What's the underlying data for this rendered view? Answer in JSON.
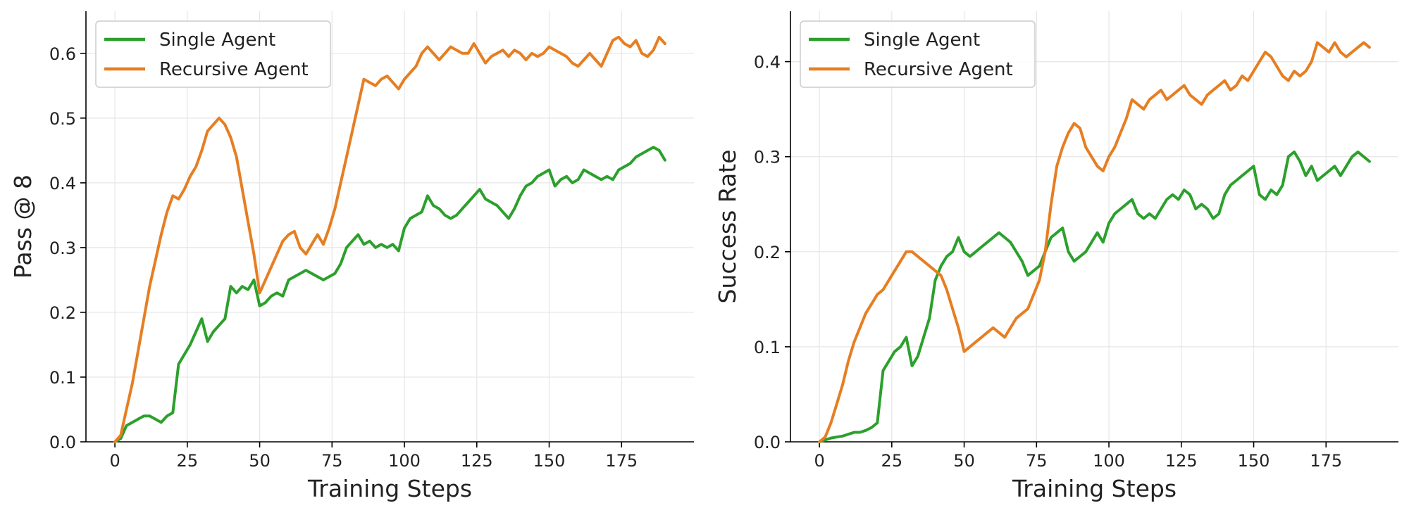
{
  "colors": {
    "single": "#2ca02c",
    "recursive": "#e67e22",
    "grid": "#e6e6e6",
    "axis": "#000000"
  },
  "chart_data": [
    {
      "type": "line",
      "xlabel": "Training Steps",
      "ylabel": "Pass @ 8",
      "xlim": [
        -10,
        200
      ],
      "ylim": [
        0,
        0.665
      ],
      "xticks": [
        0,
        25,
        50,
        75,
        100,
        125,
        150,
        175
      ],
      "xtick_labels": [
        "0",
        "25",
        "50",
        "75",
        "100",
        "125",
        "150",
        "175"
      ],
      "yticks": [
        0,
        0.1,
        0.2,
        0.3,
        0.4,
        0.5,
        0.6
      ],
      "ytick_labels": [
        "0.0",
        "0.1",
        "0.2",
        "0.3",
        "0.4",
        "0.5",
        "0.6"
      ],
      "grid": true,
      "legend": "top-left",
      "series": [
        {
          "name": "Single Agent",
          "color": "single",
          "x": [
            0,
            2,
            4,
            6,
            8,
            10,
            12,
            14,
            16,
            18,
            20,
            22,
            24,
            26,
            28,
            30,
            32,
            34,
            36,
            38,
            40,
            42,
            44,
            46,
            48,
            50,
            52,
            54,
            56,
            58,
            60,
            62,
            64,
            66,
            68,
            70,
            72,
            74,
            76,
            78,
            80,
            82,
            84,
            86,
            88,
            90,
            92,
            94,
            96,
            98,
            100,
            102,
            104,
            106,
            108,
            110,
            112,
            114,
            116,
            118,
            120,
            122,
            124,
            126,
            128,
            130,
            132,
            134,
            136,
            138,
            140,
            142,
            144,
            146,
            148,
            150,
            152,
            154,
            156,
            158,
            160,
            162,
            164,
            166,
            168,
            170,
            172,
            174,
            176,
            178,
            180,
            182,
            184,
            186,
            188,
            190
          ],
          "values": [
            0,
            0.005,
            0.025,
            0.03,
            0.035,
            0.04,
            0.04,
            0.035,
            0.03,
            0.04,
            0.045,
            0.12,
            0.135,
            0.15,
            0.17,
            0.19,
            0.155,
            0.17,
            0.18,
            0.19,
            0.24,
            0.23,
            0.24,
            0.235,
            0.25,
            0.21,
            0.215,
            0.225,
            0.23,
            0.225,
            0.25,
            0.255,
            0.26,
            0.265,
            0.26,
            0.255,
            0.25,
            0.255,
            0.26,
            0.275,
            0.3,
            0.31,
            0.32,
            0.305,
            0.31,
            0.3,
            0.305,
            0.3,
            0.305,
            0.295,
            0.33,
            0.345,
            0.35,
            0.355,
            0.38,
            0.365,
            0.36,
            0.35,
            0.345,
            0.35,
            0.36,
            0.37,
            0.38,
            0.39,
            0.375,
            0.37,
            0.365,
            0.355,
            0.345,
            0.36,
            0.38,
            0.395,
            0.4,
            0.41,
            0.415,
            0.42,
            0.395,
            0.405,
            0.41,
            0.4,
            0.405,
            0.42,
            0.415,
            0.41,
            0.405,
            0.41,
            0.405,
            0.42,
            0.425,
            0.43,
            0.44,
            0.445,
            0.45,
            0.455,
            0.45,
            0.435
          ]
        },
        {
          "name": "Recursive Agent",
          "color": "recursive",
          "x": [
            0,
            2,
            4,
            6,
            8,
            10,
            12,
            14,
            16,
            18,
            20,
            22,
            24,
            26,
            28,
            30,
            32,
            34,
            36,
            38,
            40,
            42,
            44,
            46,
            48,
            50,
            52,
            54,
            56,
            58,
            60,
            62,
            64,
            66,
            68,
            70,
            72,
            74,
            76,
            78,
            80,
            82,
            84,
            86,
            88,
            90,
            92,
            94,
            96,
            98,
            100,
            102,
            104,
            106,
            108,
            110,
            112,
            114,
            116,
            118,
            120,
            122,
            124,
            126,
            128,
            130,
            132,
            134,
            136,
            138,
            140,
            142,
            144,
            146,
            148,
            150,
            152,
            154,
            156,
            158,
            160,
            162,
            164,
            166,
            168,
            170,
            172,
            174,
            176,
            178,
            180,
            182,
            184,
            186,
            188,
            190
          ],
          "values": [
            0,
            0.01,
            0.05,
            0.09,
            0.14,
            0.19,
            0.24,
            0.28,
            0.32,
            0.355,
            0.38,
            0.375,
            0.39,
            0.41,
            0.425,
            0.45,
            0.48,
            0.49,
            0.5,
            0.49,
            0.47,
            0.44,
            0.39,
            0.34,
            0.29,
            0.23,
            0.25,
            0.27,
            0.29,
            0.31,
            0.32,
            0.325,
            0.3,
            0.29,
            0.305,
            0.32,
            0.305,
            0.33,
            0.36,
            0.4,
            0.44,
            0.48,
            0.52,
            0.56,
            0.555,
            0.55,
            0.56,
            0.565,
            0.555,
            0.545,
            0.56,
            0.57,
            0.58,
            0.6,
            0.61,
            0.6,
            0.59,
            0.6,
            0.61,
            0.605,
            0.6,
            0.6,
            0.615,
            0.6,
            0.585,
            0.595,
            0.6,
            0.605,
            0.595,
            0.605,
            0.6,
            0.59,
            0.6,
            0.595,
            0.6,
            0.61,
            0.605,
            0.6,
            0.595,
            0.585,
            0.58,
            0.59,
            0.6,
            0.59,
            0.58,
            0.6,
            0.62,
            0.625,
            0.615,
            0.61,
            0.62,
            0.6,
            0.595,
            0.605,
            0.625,
            0.615
          ]
        }
      ]
    },
    {
      "type": "line",
      "xlabel": "Training Steps",
      "ylabel": "Success Rate",
      "xlim": [
        -10,
        200
      ],
      "ylim": [
        0,
        0.453
      ],
      "xticks": [
        0,
        25,
        50,
        75,
        100,
        125,
        150,
        175
      ],
      "xtick_labels": [
        "0",
        "25",
        "50",
        "75",
        "100",
        "125",
        "150",
        "175"
      ],
      "yticks": [
        0,
        0.1,
        0.2,
        0.3,
        0.4
      ],
      "ytick_labels": [
        "0.0",
        "0.1",
        "0.2",
        "0.3",
        "0.4"
      ],
      "grid": true,
      "legend": "top-left",
      "series": [
        {
          "name": "Single Agent",
          "color": "single",
          "x": [
            0,
            2,
            4,
            6,
            8,
            10,
            12,
            14,
            16,
            18,
            20,
            22,
            24,
            26,
            28,
            30,
            32,
            34,
            36,
            38,
            40,
            42,
            44,
            46,
            48,
            50,
            52,
            54,
            56,
            58,
            60,
            62,
            64,
            66,
            68,
            70,
            72,
            74,
            76,
            78,
            80,
            82,
            84,
            86,
            88,
            90,
            92,
            94,
            96,
            98,
            100,
            102,
            104,
            106,
            108,
            110,
            112,
            114,
            116,
            118,
            120,
            122,
            124,
            126,
            128,
            130,
            132,
            134,
            136,
            138,
            140,
            142,
            144,
            146,
            148,
            150,
            152,
            154,
            156,
            158,
            160,
            162,
            164,
            166,
            168,
            170,
            172,
            174,
            176,
            178,
            180,
            182,
            184,
            186,
            188,
            190
          ],
          "values": [
            0,
            0.002,
            0.004,
            0.005,
            0.006,
            0.008,
            0.01,
            0.01,
            0.012,
            0.015,
            0.02,
            0.075,
            0.085,
            0.095,
            0.1,
            0.11,
            0.08,
            0.09,
            0.11,
            0.13,
            0.17,
            0.185,
            0.195,
            0.2,
            0.215,
            0.2,
            0.195,
            0.2,
            0.205,
            0.21,
            0.215,
            0.22,
            0.215,
            0.21,
            0.2,
            0.19,
            0.175,
            0.18,
            0.185,
            0.2,
            0.215,
            0.22,
            0.225,
            0.2,
            0.19,
            0.195,
            0.2,
            0.21,
            0.22,
            0.21,
            0.23,
            0.24,
            0.245,
            0.25,
            0.255,
            0.24,
            0.235,
            0.24,
            0.235,
            0.245,
            0.255,
            0.26,
            0.255,
            0.265,
            0.26,
            0.245,
            0.25,
            0.245,
            0.235,
            0.24,
            0.26,
            0.27,
            0.275,
            0.28,
            0.285,
            0.29,
            0.26,
            0.255,
            0.265,
            0.26,
            0.27,
            0.3,
            0.305,
            0.295,
            0.28,
            0.29,
            0.275,
            0.28,
            0.285,
            0.29,
            0.28,
            0.29,
            0.3,
            0.305,
            0.3,
            0.295
          ]
        },
        {
          "name": "Recursive Agent",
          "color": "recursive",
          "x": [
            0,
            2,
            4,
            6,
            8,
            10,
            12,
            14,
            16,
            18,
            20,
            22,
            24,
            26,
            28,
            30,
            32,
            34,
            36,
            38,
            40,
            42,
            44,
            46,
            48,
            50,
            52,
            54,
            56,
            58,
            60,
            62,
            64,
            66,
            68,
            70,
            72,
            74,
            76,
            78,
            80,
            82,
            84,
            86,
            88,
            90,
            92,
            94,
            96,
            98,
            100,
            102,
            104,
            106,
            108,
            110,
            112,
            114,
            116,
            118,
            120,
            122,
            124,
            126,
            128,
            130,
            132,
            134,
            136,
            138,
            140,
            142,
            144,
            146,
            148,
            150,
            152,
            154,
            156,
            158,
            160,
            162,
            164,
            166,
            168,
            170,
            172,
            174,
            176,
            178,
            180,
            182,
            184,
            186,
            188,
            190
          ],
          "values": [
            0,
            0.005,
            0.02,
            0.04,
            0.06,
            0.085,
            0.105,
            0.12,
            0.135,
            0.145,
            0.155,
            0.16,
            0.17,
            0.18,
            0.19,
            0.2,
            0.2,
            0.195,
            0.19,
            0.185,
            0.18,
            0.175,
            0.16,
            0.14,
            0.12,
            0.095,
            0.1,
            0.105,
            0.11,
            0.115,
            0.12,
            0.115,
            0.11,
            0.12,
            0.13,
            0.135,
            0.14,
            0.155,
            0.17,
            0.2,
            0.25,
            0.29,
            0.31,
            0.325,
            0.335,
            0.33,
            0.31,
            0.3,
            0.29,
            0.285,
            0.3,
            0.31,
            0.325,
            0.34,
            0.36,
            0.355,
            0.35,
            0.36,
            0.365,
            0.37,
            0.36,
            0.365,
            0.37,
            0.375,
            0.365,
            0.36,
            0.355,
            0.365,
            0.37,
            0.375,
            0.38,
            0.37,
            0.375,
            0.385,
            0.38,
            0.39,
            0.4,
            0.41,
            0.405,
            0.395,
            0.385,
            0.38,
            0.39,
            0.385,
            0.39,
            0.4,
            0.42,
            0.415,
            0.41,
            0.42,
            0.41,
            0.405,
            0.41,
            0.415,
            0.42,
            0.415
          ]
        }
      ]
    }
  ]
}
